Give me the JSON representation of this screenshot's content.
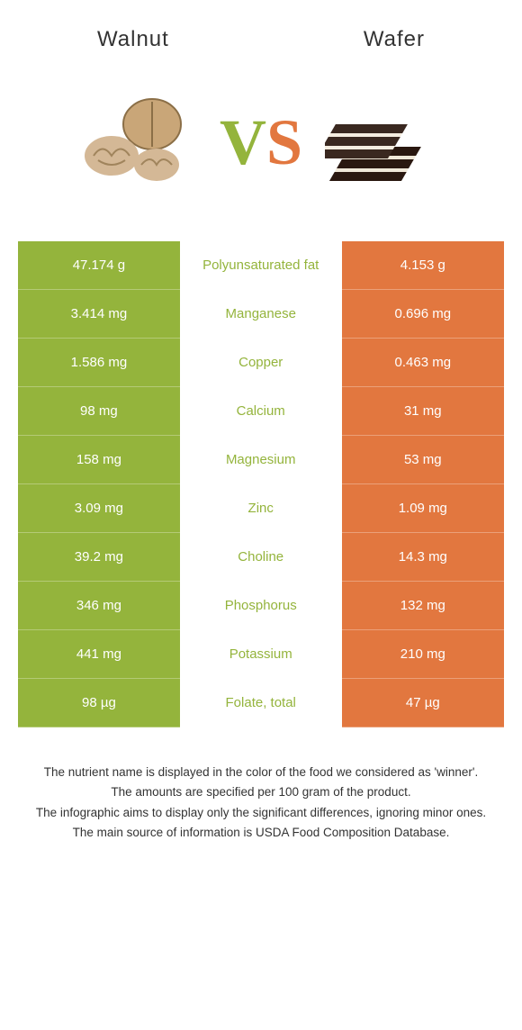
{
  "header": {
    "left_title": "Walnut",
    "right_title": "Wafer"
  },
  "vs": {
    "v": "V",
    "s": "S"
  },
  "colors": {
    "left_bg": "#94b43c",
    "right_bg": "#e2773f",
    "left_text": "#94b43c",
    "right_text": "#e2773f",
    "footer_text": "#333333"
  },
  "table": {
    "label_fontsize": 15,
    "value_fontsize": 15,
    "rows": [
      {
        "left": "47.174 g",
        "mid": "Polyunsaturated fat",
        "right": "4.153 g",
        "winner": "left"
      },
      {
        "left": "3.414 mg",
        "mid": "Manganese",
        "right": "0.696 mg",
        "winner": "left"
      },
      {
        "left": "1.586 mg",
        "mid": "Copper",
        "right": "0.463 mg",
        "winner": "left"
      },
      {
        "left": "98 mg",
        "mid": "Calcium",
        "right": "31 mg",
        "winner": "left"
      },
      {
        "left": "158 mg",
        "mid": "Magnesium",
        "right": "53 mg",
        "winner": "left"
      },
      {
        "left": "3.09 mg",
        "mid": "Zinc",
        "right": "1.09 mg",
        "winner": "left"
      },
      {
        "left": "39.2 mg",
        "mid": "Choline",
        "right": "14.3 mg",
        "winner": "left"
      },
      {
        "left": "346 mg",
        "mid": "Phosphorus",
        "right": "132 mg",
        "winner": "left"
      },
      {
        "left": "441 mg",
        "mid": "Potassium",
        "right": "210 mg",
        "winner": "left"
      },
      {
        "left": "98 µg",
        "mid": "Folate, total",
        "right": "47 µg",
        "winner": "left"
      }
    ]
  },
  "footer": {
    "line1": "The nutrient name is displayed in the color of the food we considered as 'winner'.",
    "line2": "The amounts are specified per 100 gram of the product.",
    "line3": "The infographic aims to display only the significant differences, ignoring minor ones.",
    "line4": "The main source of information is USDA Food Composition Database."
  }
}
